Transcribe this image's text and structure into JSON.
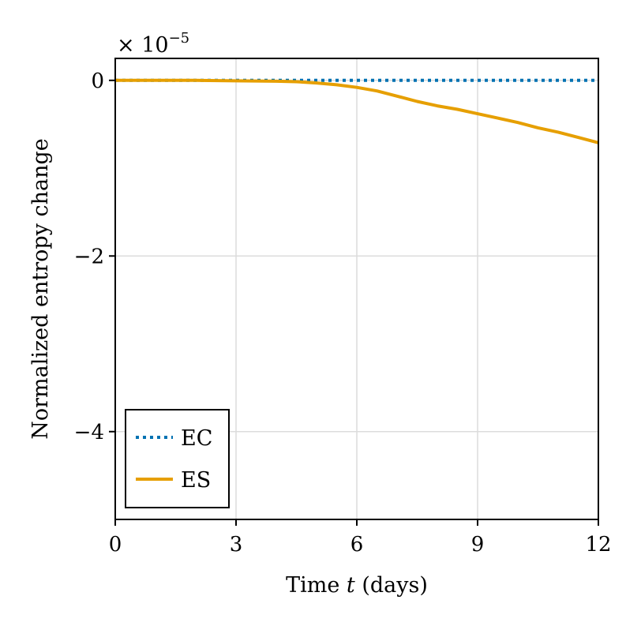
{
  "chart_data": {
    "type": "line",
    "xlabel": "Time t (days)",
    "xlabel_parts": {
      "prefix": "Time ",
      "var": "t",
      "suffix": " (days)"
    },
    "ylabel": "Normalized entropy change",
    "y_scale_factor": {
      "base": "× 10",
      "exponent": "−5"
    },
    "xlim": [
      0,
      12
    ],
    "ylim": [
      -5,
      0.25
    ],
    "xticks": [
      0,
      3,
      6,
      9,
      12
    ],
    "xtick_labels": [
      "0",
      "3",
      "6",
      "9",
      "12"
    ],
    "yticks": [
      0,
      -2,
      -4
    ],
    "ytick_labels": [
      "0",
      "−2",
      "−4"
    ],
    "grid": true,
    "legend_position": "bottom-left",
    "series": [
      {
        "name": "EC",
        "color": "#0072B2",
        "style": "dotted",
        "x": [
          0,
          1,
          2,
          3,
          4,
          5,
          6,
          7,
          8,
          9,
          10,
          11,
          12
        ],
        "y": [
          0,
          0,
          0,
          0,
          0,
          0,
          0,
          0,
          0,
          0,
          0,
          0,
          0
        ]
      },
      {
        "name": "ES",
        "color": "#E69F00",
        "style": "solid",
        "x": [
          0,
          1,
          2,
          3,
          4,
          4.5,
          5,
          5.5,
          6,
          6.5,
          7,
          7.5,
          8,
          8.5,
          9,
          9.5,
          10,
          10.5,
          11,
          11.5,
          12
        ],
        "y": [
          0,
          0,
          0,
          -0.005,
          -0.01,
          -0.015,
          -0.03,
          -0.05,
          -0.08,
          -0.12,
          -0.18,
          -0.24,
          -0.29,
          -0.33,
          -0.38,
          -0.43,
          -0.48,
          -0.54,
          -0.59,
          -0.65,
          -0.71
        ]
      }
    ]
  }
}
